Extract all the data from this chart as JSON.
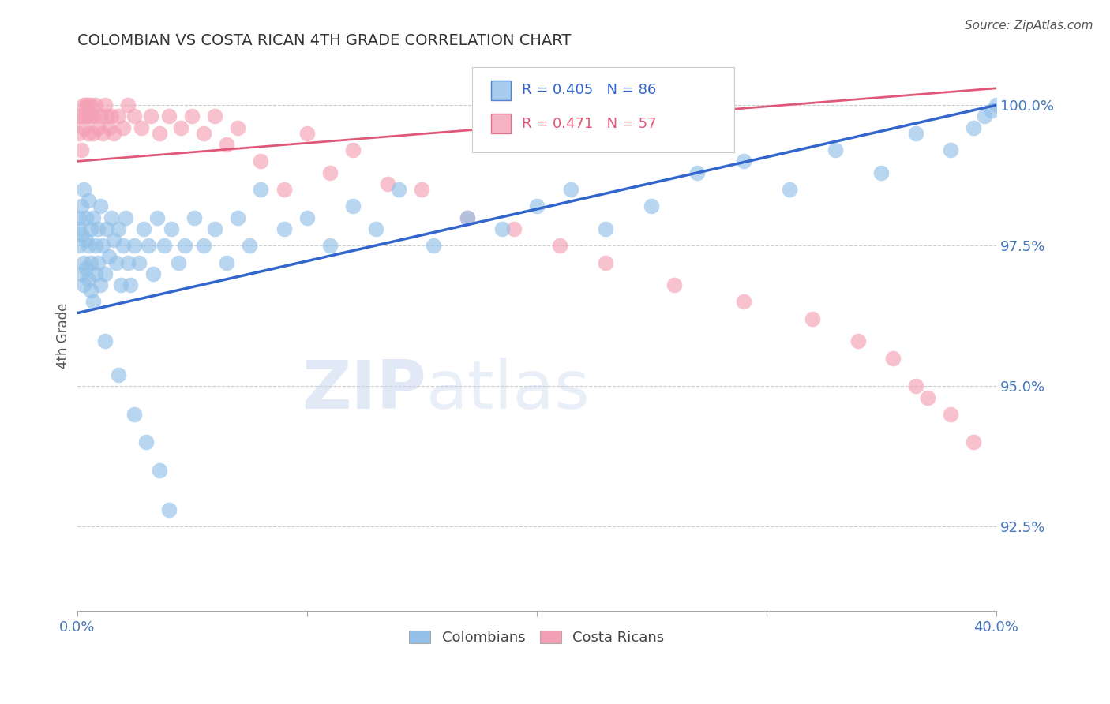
{
  "title": "COLOMBIAN VS COSTA RICAN 4TH GRADE CORRELATION CHART",
  "source": "Source: ZipAtlas.com",
  "ylabel": "4th Grade",
  "ylabel_right_labels": [
    "92.5%",
    "95.0%",
    "97.5%",
    "100.0%"
  ],
  "ylabel_right_values": [
    0.925,
    0.95,
    0.975,
    1.0
  ],
  "xmin": 0.0,
  "xmax": 0.4,
  "ymin": 0.91,
  "ymax": 1.008,
  "legend_R_colombians": "R = 0.405",
  "legend_N_colombians": "N = 86",
  "legend_R_costaricans": "R = 0.471",
  "legend_N_costaricans": "N = 57",
  "color_colombians": "#92C0E8",
  "color_costaricans": "#F4A0B4",
  "color_line_colombians": "#3366CC",
  "color_line_costaricans": "#E05878",
  "blue_line_y0": 0.963,
  "blue_line_y1": 1.0,
  "pink_line_y0": 0.99,
  "pink_line_y1": 1.003,
  "colombians_x": [
    0.001,
    0.001,
    0.001,
    0.002,
    0.002,
    0.002,
    0.003,
    0.003,
    0.003,
    0.004,
    0.004,
    0.004,
    0.005,
    0.005,
    0.005,
    0.006,
    0.006,
    0.006,
    0.007,
    0.007,
    0.008,
    0.008,
    0.009,
    0.009,
    0.01,
    0.01,
    0.011,
    0.012,
    0.013,
    0.014,
    0.015,
    0.016,
    0.017,
    0.018,
    0.019,
    0.02,
    0.021,
    0.022,
    0.023,
    0.025,
    0.027,
    0.029,
    0.031,
    0.033,
    0.035,
    0.038,
    0.041,
    0.044,
    0.047,
    0.051,
    0.055,
    0.06,
    0.065,
    0.07,
    0.075,
    0.08,
    0.09,
    0.1,
    0.11,
    0.12,
    0.13,
    0.14,
    0.155,
    0.17,
    0.185,
    0.2,
    0.215,
    0.23,
    0.25,
    0.27,
    0.29,
    0.31,
    0.33,
    0.35,
    0.365,
    0.38,
    0.39,
    0.395,
    0.398,
    0.4,
    0.012,
    0.018,
    0.025,
    0.03,
    0.036,
    0.04
  ],
  "colombians_y": [
    0.98,
    0.975,
    0.978,
    0.982,
    0.97,
    0.977,
    0.985,
    0.972,
    0.968,
    0.98,
    0.976,
    0.971,
    0.983,
    0.969,
    0.975,
    0.978,
    0.972,
    0.967,
    0.98,
    0.965,
    0.975,
    0.97,
    0.978,
    0.972,
    0.982,
    0.968,
    0.975,
    0.97,
    0.978,
    0.973,
    0.98,
    0.976,
    0.972,
    0.978,
    0.968,
    0.975,
    0.98,
    0.972,
    0.968,
    0.975,
    0.972,
    0.978,
    0.975,
    0.97,
    0.98,
    0.975,
    0.978,
    0.972,
    0.975,
    0.98,
    0.975,
    0.978,
    0.972,
    0.98,
    0.975,
    0.985,
    0.978,
    0.98,
    0.975,
    0.982,
    0.978,
    0.985,
    0.975,
    0.98,
    0.978,
    0.982,
    0.985,
    0.978,
    0.982,
    0.988,
    0.99,
    0.985,
    0.992,
    0.988,
    0.995,
    0.992,
    0.996,
    0.998,
    0.999,
    1.0,
    0.958,
    0.952,
    0.945,
    0.94,
    0.935,
    0.928
  ],
  "costaricans_x": [
    0.001,
    0.001,
    0.002,
    0.002,
    0.003,
    0.003,
    0.004,
    0.004,
    0.005,
    0.005,
    0.006,
    0.006,
    0.007,
    0.007,
    0.008,
    0.009,
    0.01,
    0.011,
    0.012,
    0.013,
    0.014,
    0.015,
    0.016,
    0.018,
    0.02,
    0.022,
    0.025,
    0.028,
    0.032,
    0.036,
    0.04,
    0.045,
    0.05,
    0.055,
    0.06,
    0.065,
    0.07,
    0.08,
    0.09,
    0.1,
    0.11,
    0.12,
    0.135,
    0.15,
    0.17,
    0.19,
    0.21,
    0.23,
    0.26,
    0.29,
    0.32,
    0.34,
    0.355,
    0.365,
    0.37,
    0.38,
    0.39
  ],
  "costaricans_y": [
    0.998,
    0.995,
    0.992,
    0.998,
    1.0,
    0.996,
    1.0,
    0.998,
    0.995,
    1.0,
    0.998,
    1.0,
    0.995,
    0.998,
    1.0,
    0.996,
    0.998,
    0.995,
    1.0,
    0.998,
    0.996,
    0.998,
    0.995,
    0.998,
    0.996,
    1.0,
    0.998,
    0.996,
    0.998,
    0.995,
    0.998,
    0.996,
    0.998,
    0.995,
    0.998,
    0.993,
    0.996,
    0.99,
    0.985,
    0.995,
    0.988,
    0.992,
    0.986,
    0.985,
    0.98,
    0.978,
    0.975,
    0.972,
    0.968,
    0.965,
    0.962,
    0.958,
    0.955,
    0.95,
    0.948,
    0.945,
    0.94
  ]
}
